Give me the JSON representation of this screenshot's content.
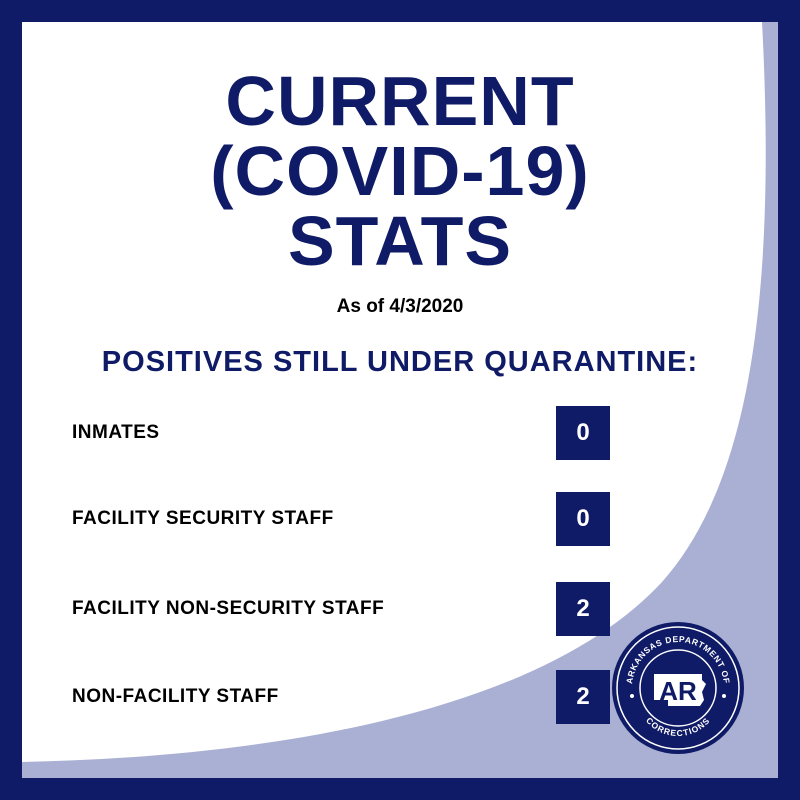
{
  "title": {
    "line1": "CURRENT",
    "line2": "(COVID-19)",
    "line3": "STATS"
  },
  "as_of": "As of 4/3/2020",
  "section_heading": "POSITIVES STILL UNDER QUARANTINE:",
  "rows": [
    {
      "label": "INMATES",
      "value": "0"
    },
    {
      "label": "FACILITY SECURITY STAFF",
      "value": "0"
    },
    {
      "label": "FACILITY NON-SECURITY STAFF",
      "value": "2"
    },
    {
      "label": "NON-FACILITY STAFF",
      "value": "2"
    }
  ],
  "seal": {
    "top_text": "ARKANSAS DEPARTMENT OF",
    "bottom_text": "CORRECTIONS",
    "monogram": "AR"
  },
  "colors": {
    "navy": "#0f1b66",
    "lavender": "#aab0d3",
    "white": "#ffffff"
  }
}
